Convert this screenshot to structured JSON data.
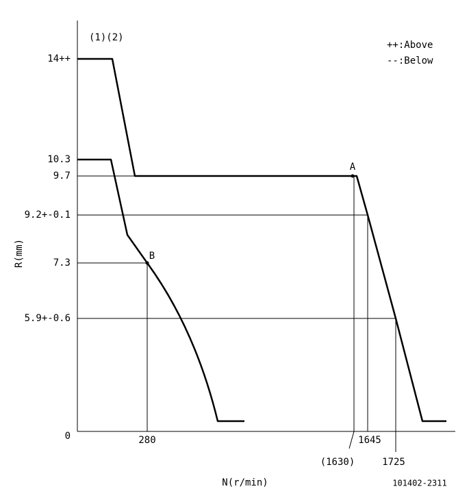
{
  "header": {
    "notes": "(1)(2)",
    "legend": [
      "++:Above",
      "--:Below"
    ]
  },
  "axes": {
    "y_title": "R(mm)",
    "x_title": "N(r/min)",
    "y_labels": [
      "14++",
      "10.3",
      "9.7",
      "9.2+-0.1",
      "7.3",
      "5.9+-0.6",
      "0"
    ],
    "x_labels": [
      "280",
      "1645",
      "(1630)",
      "1725"
    ]
  },
  "points": [
    "A",
    "B"
  ],
  "code": "101402-2311"
}
